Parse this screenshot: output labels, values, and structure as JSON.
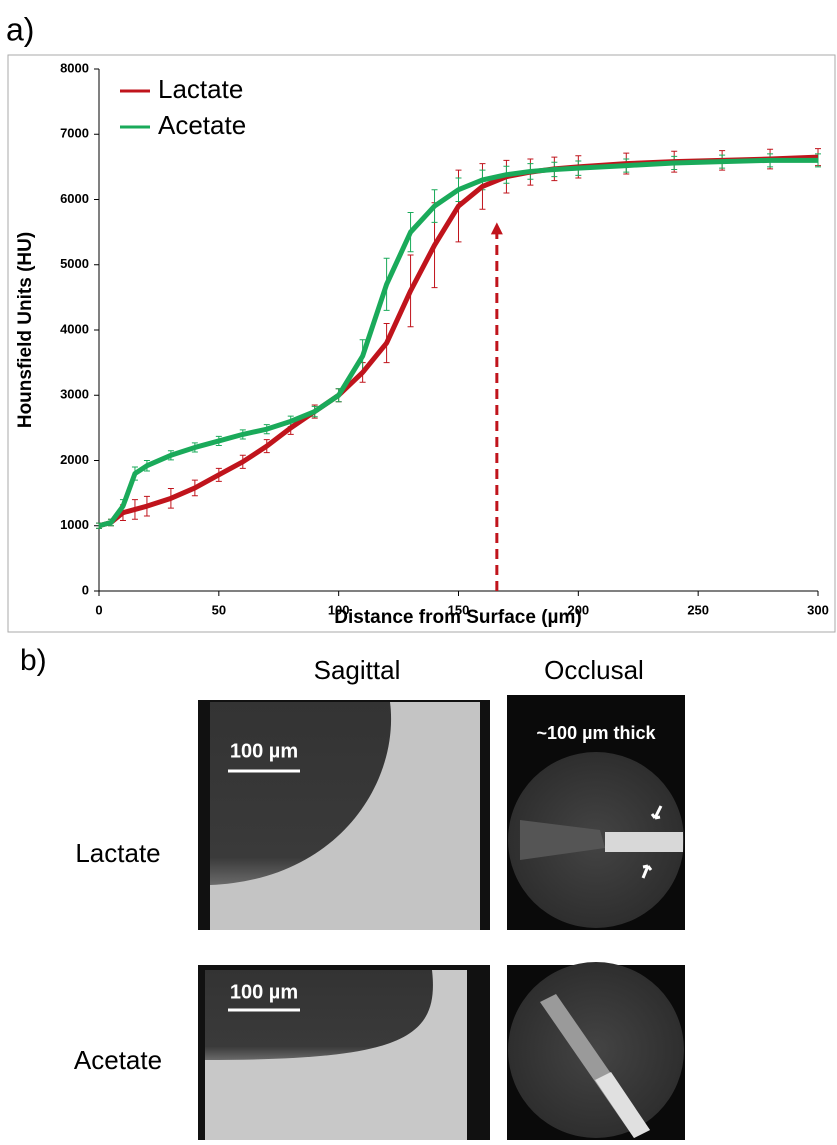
{
  "panel_labels": [
    "a)",
    "b)"
  ],
  "chart_data": {
    "type": "line",
    "xlabel": "Distance from Surface (µm)",
    "ylabel": "Hounsfield Units (HU)",
    "x": [
      0,
      5,
      10,
      15,
      20,
      30,
      40,
      50,
      60,
      70,
      80,
      90,
      100,
      110,
      120,
      130,
      140,
      150,
      160,
      170,
      180,
      190,
      200,
      220,
      240,
      260,
      280,
      300
    ],
    "series": [
      {
        "name": "Lactate",
        "color": "#c0141c",
        "values": [
          1000,
          1050,
          1200,
          1250,
          1300,
          1420,
          1580,
          1780,
          1980,
          2220,
          2500,
          2750,
          3000,
          3350,
          3800,
          4600,
          5300,
          5900,
          6200,
          6350,
          6420,
          6470,
          6500,
          6550,
          6580,
          6600,
          6620,
          6650
        ],
        "errors": [
          40,
          50,
          120,
          150,
          150,
          150,
          120,
          100,
          100,
          100,
          100,
          100,
          100,
          150,
          300,
          550,
          650,
          550,
          350,
          250,
          200,
          180,
          170,
          160,
          160,
          150,
          150,
          130
        ]
      },
      {
        "name": "Acetate",
        "color": "#1aaa5a",
        "values": [
          1000,
          1050,
          1300,
          1800,
          1920,
          2080,
          2200,
          2300,
          2400,
          2480,
          2600,
          2750,
          3000,
          3600,
          4700,
          5500,
          5900,
          6150,
          6300,
          6380,
          6430,
          6460,
          6480,
          6520,
          6560,
          6580,
          6600,
          6600
        ],
        "errors": [
          40,
          50,
          100,
          100,
          80,
          70,
          70,
          70,
          70,
          70,
          80,
          80,
          100,
          250,
          400,
          300,
          250,
          180,
          150,
          130,
          120,
          110,
          110,
          100,
          100,
          100,
          100,
          100
        ]
      }
    ],
    "arrow_x": 166,
    "arrow_top": 5650,
    "arrow_color": "#c0141c",
    "xlim": [
      0,
      300
    ],
    "xticks": [
      0,
      50,
      100,
      150,
      200,
      250,
      300
    ],
    "ylim": [
      0,
      8000
    ],
    "yticks": [
      0,
      1000,
      2000,
      3000,
      4000,
      5000,
      6000,
      7000,
      8000
    ],
    "grid": false,
    "legend": "upper left"
  },
  "panel_b": {
    "columns": [
      "Sagittal",
      "Occlusal"
    ],
    "rows": [
      "Lactate",
      "Acetate"
    ],
    "scale_bar": "100 µm",
    "thickness_note": "~100 µm thick"
  }
}
